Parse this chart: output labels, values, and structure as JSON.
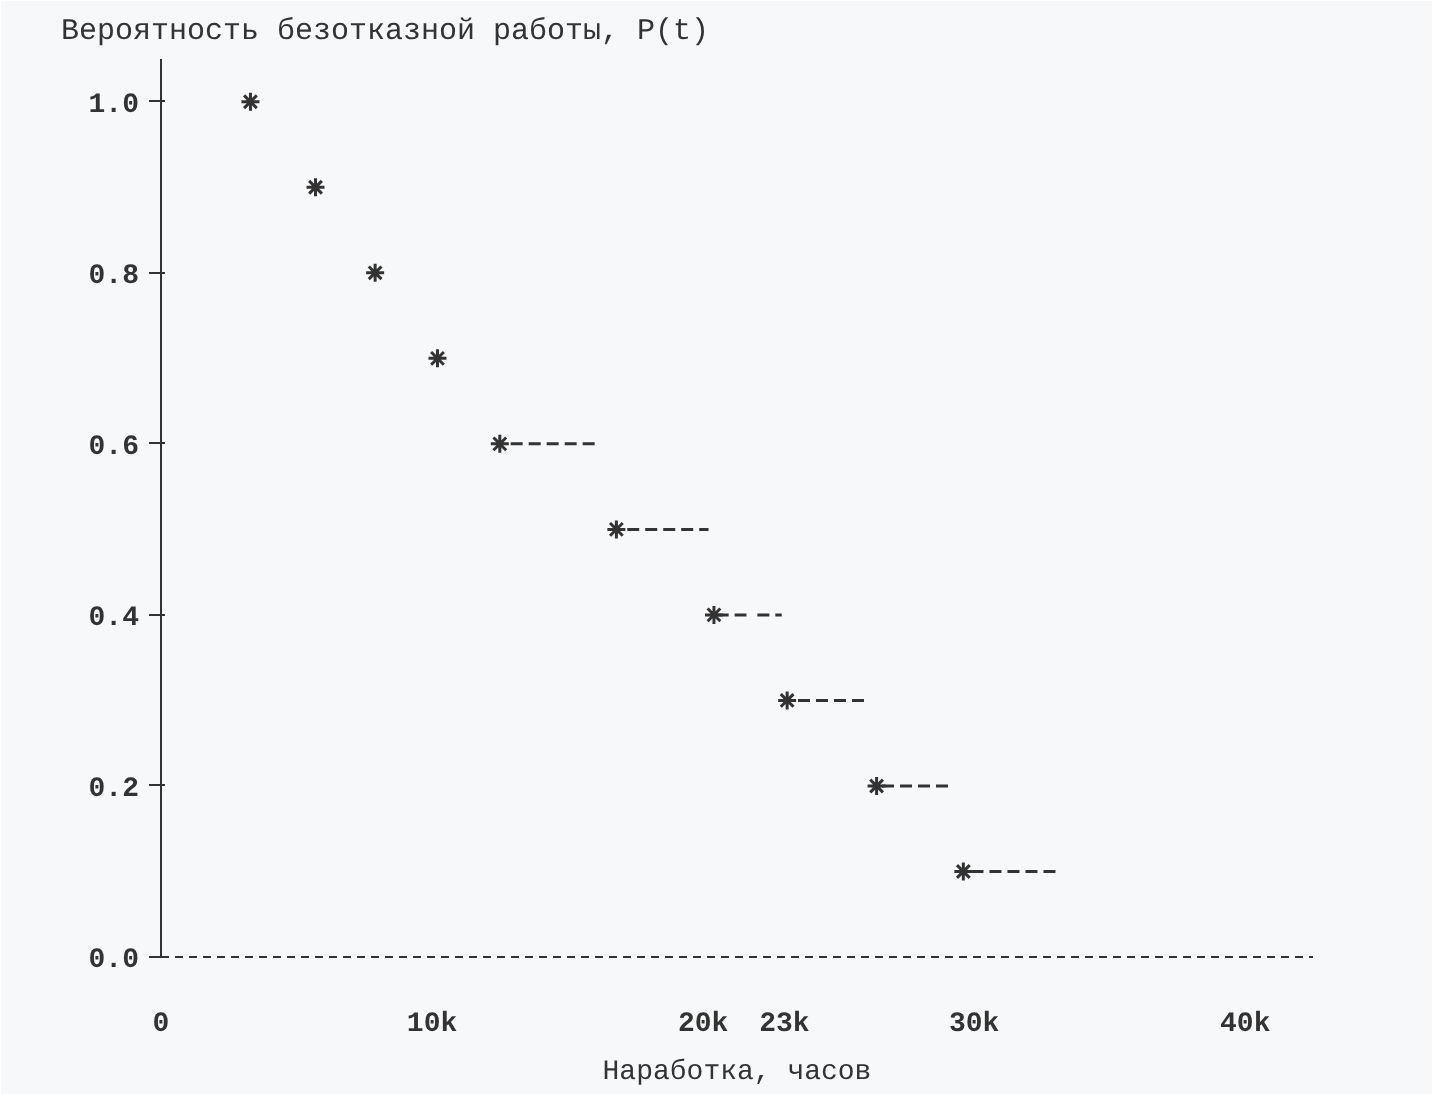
{
  "chart_data": {
    "type": "scatter",
    "title": "Вероятность безотказной работы, P(t)",
    "xlabel": "Наработка, часов",
    "xlim": [
      0,
      42500
    ],
    "xticks": [
      {
        "value": 0,
        "label": "0"
      },
      {
        "value": 10000,
        "label": "10k"
      },
      {
        "value": 20000,
        "label": "20k"
      },
      {
        "value": 23000,
        "label": "23k"
      },
      {
        "value": 30000,
        "label": "30k"
      },
      {
        "value": 40000,
        "label": "40k"
      }
    ],
    "ylim": [
      0,
      1.05
    ],
    "yticks": [
      {
        "value": 0,
        "label": "0.0"
      },
      {
        "value": 0.2,
        "label": "0.2"
      },
      {
        "value": 0.4,
        "label": "0.4"
      },
      {
        "value": 0.6,
        "label": "0.6"
      },
      {
        "value": 0.8,
        "label": "0.8"
      },
      {
        "value": 1.0,
        "label": "1.0"
      }
    ],
    "grid": false,
    "series": [
      {
        "marker": "cross",
        "color": "#333333",
        "x": [
          3300,
          5700,
          7900,
          10200,
          12500,
          16800,
          20400,
          23100,
          26400,
          29600
        ],
        "values": [
          1.0,
          0.9,
          0.8,
          0.7,
          0.6,
          0.5,
          0.4,
          0.3,
          0.2,
          0.1
        ]
      },
      {
        "type": "line",
        "line_style": "dashed",
        "marker": "none",
        "color": "#333333",
        "x": [
          12900,
          16200,
          null,
          17200,
          20200,
          null,
          20500,
          21600,
          null,
          22000,
          22900,
          null,
          23500,
          26000,
          null,
          26600,
          29100,
          null,
          29900,
          33100
        ],
        "values": [
          0.6,
          0.6,
          null,
          0.5,
          0.5,
          null,
          0.4,
          0.4,
          null,
          0.4,
          0.4,
          null,
          0.3,
          0.3,
          null,
          0.2,
          0.2,
          null,
          0.1,
          0.1
        ]
      }
    ]
  }
}
